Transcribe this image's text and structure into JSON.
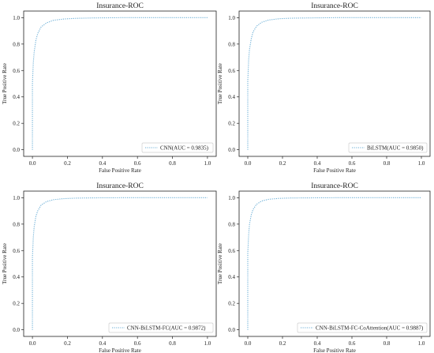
{
  "chart_data": [
    {
      "type": "line",
      "title": "Insurance-ROC",
      "xlabel": "False Positive Rate",
      "ylabel": "True Positive Rate",
      "xlim": [
        -0.05,
        1.05
      ],
      "ylim": [
        -0.05,
        1.05
      ],
      "xticks": [
        "0.0",
        "0.2",
        "0.4",
        "0.6",
        "0.8",
        "1.0"
      ],
      "yticks": [
        "0.0",
        "0.2",
        "0.4",
        "0.6",
        "0.8",
        "1.0"
      ],
      "legend_position": "lower-right",
      "grid": false,
      "series": [
        {
          "name": "CNN(AUC = 0.9835)",
          "color": "#6aaed6",
          "x": [
            0,
            0,
            0.005,
            0.01,
            0.02,
            0.03,
            0.05,
            0.08,
            0.12,
            0.18,
            0.25,
            0.35,
            0.5,
            0.7,
            1.0
          ],
          "y": [
            0,
            0.5,
            0.66,
            0.74,
            0.83,
            0.88,
            0.93,
            0.96,
            0.98,
            0.99,
            0.995,
            0.998,
            1.0,
            1.0,
            1.0
          ]
        }
      ]
    },
    {
      "type": "line",
      "title": "Insurance-ROC",
      "xlabel": "False Positive Rate",
      "ylabel": "True Positive Rate",
      "xlim": [
        -0.05,
        1.05
      ],
      "ylim": [
        -0.05,
        1.05
      ],
      "xticks": [
        "0.0",
        "0.2",
        "0.4",
        "0.6",
        "0.8",
        "1.0"
      ],
      "yticks": [
        "0.0",
        "0.2",
        "0.4",
        "0.6",
        "0.8",
        "1.0"
      ],
      "legend_position": "lower-right",
      "grid": false,
      "series": [
        {
          "name": "BiLSTM(AUC = 0.9850)",
          "color": "#6aaed6",
          "x": [
            0,
            0,
            0.005,
            0.01,
            0.02,
            0.03,
            0.05,
            0.08,
            0.12,
            0.18,
            0.25,
            0.35,
            0.5,
            0.7,
            1.0
          ],
          "y": [
            0,
            0.52,
            0.68,
            0.76,
            0.84,
            0.89,
            0.935,
            0.965,
            0.982,
            0.992,
            0.996,
            0.998,
            1.0,
            1.0,
            1.0
          ]
        }
      ]
    },
    {
      "type": "line",
      "title": "Insurance-ROC",
      "xlabel": "False Positive Rate",
      "ylabel": "True Positive Rate",
      "xlim": [
        -0.05,
        1.05
      ],
      "ylim": [
        -0.05,
        1.05
      ],
      "xticks": [
        "0.0",
        "0.2",
        "0.4",
        "0.6",
        "0.8",
        "1.0"
      ],
      "yticks": [
        "0.0",
        "0.2",
        "0.4",
        "0.6",
        "0.8",
        "1.0"
      ],
      "legend_position": "lower-right",
      "grid": false,
      "series": [
        {
          "name": "CNN-BiLSTM-FC(AUC = 0.9872)",
          "color": "#6aaed6",
          "x": [
            0,
            0,
            0.005,
            0.01,
            0.02,
            0.03,
            0.05,
            0.08,
            0.12,
            0.18,
            0.25,
            0.35,
            0.5,
            0.7,
            1.0
          ],
          "y": [
            0,
            0.55,
            0.7,
            0.78,
            0.86,
            0.9,
            0.945,
            0.97,
            0.985,
            0.993,
            0.997,
            0.999,
            1.0,
            1.0,
            1.0
          ]
        }
      ]
    },
    {
      "type": "line",
      "title": "Insurance-ROC",
      "xlabel": "False Positive Rate",
      "ylabel": "True Positive Rate",
      "xlim": [
        -0.05,
        1.05
      ],
      "ylim": [
        -0.05,
        1.05
      ],
      "xticks": [
        "0.0",
        "0.2",
        "0.4",
        "0.6",
        "0.8",
        "1.0"
      ],
      "yticks": [
        "0.0",
        "0.2",
        "0.4",
        "0.6",
        "0.8",
        "1.0"
      ],
      "legend_position": "lower-right",
      "grid": false,
      "series": [
        {
          "name": "CNN-BiLSTM-FC-CoAttention(AUC = 0.9887)",
          "color": "#6aaed6",
          "x": [
            0,
            0,
            0.005,
            0.01,
            0.02,
            0.03,
            0.05,
            0.08,
            0.12,
            0.18,
            0.25,
            0.35,
            0.5,
            0.7,
            1.0
          ],
          "y": [
            0,
            0.58,
            0.72,
            0.8,
            0.87,
            0.91,
            0.95,
            0.975,
            0.988,
            0.995,
            0.998,
            0.999,
            1.0,
            1.0,
            1.0
          ]
        }
      ]
    }
  ]
}
